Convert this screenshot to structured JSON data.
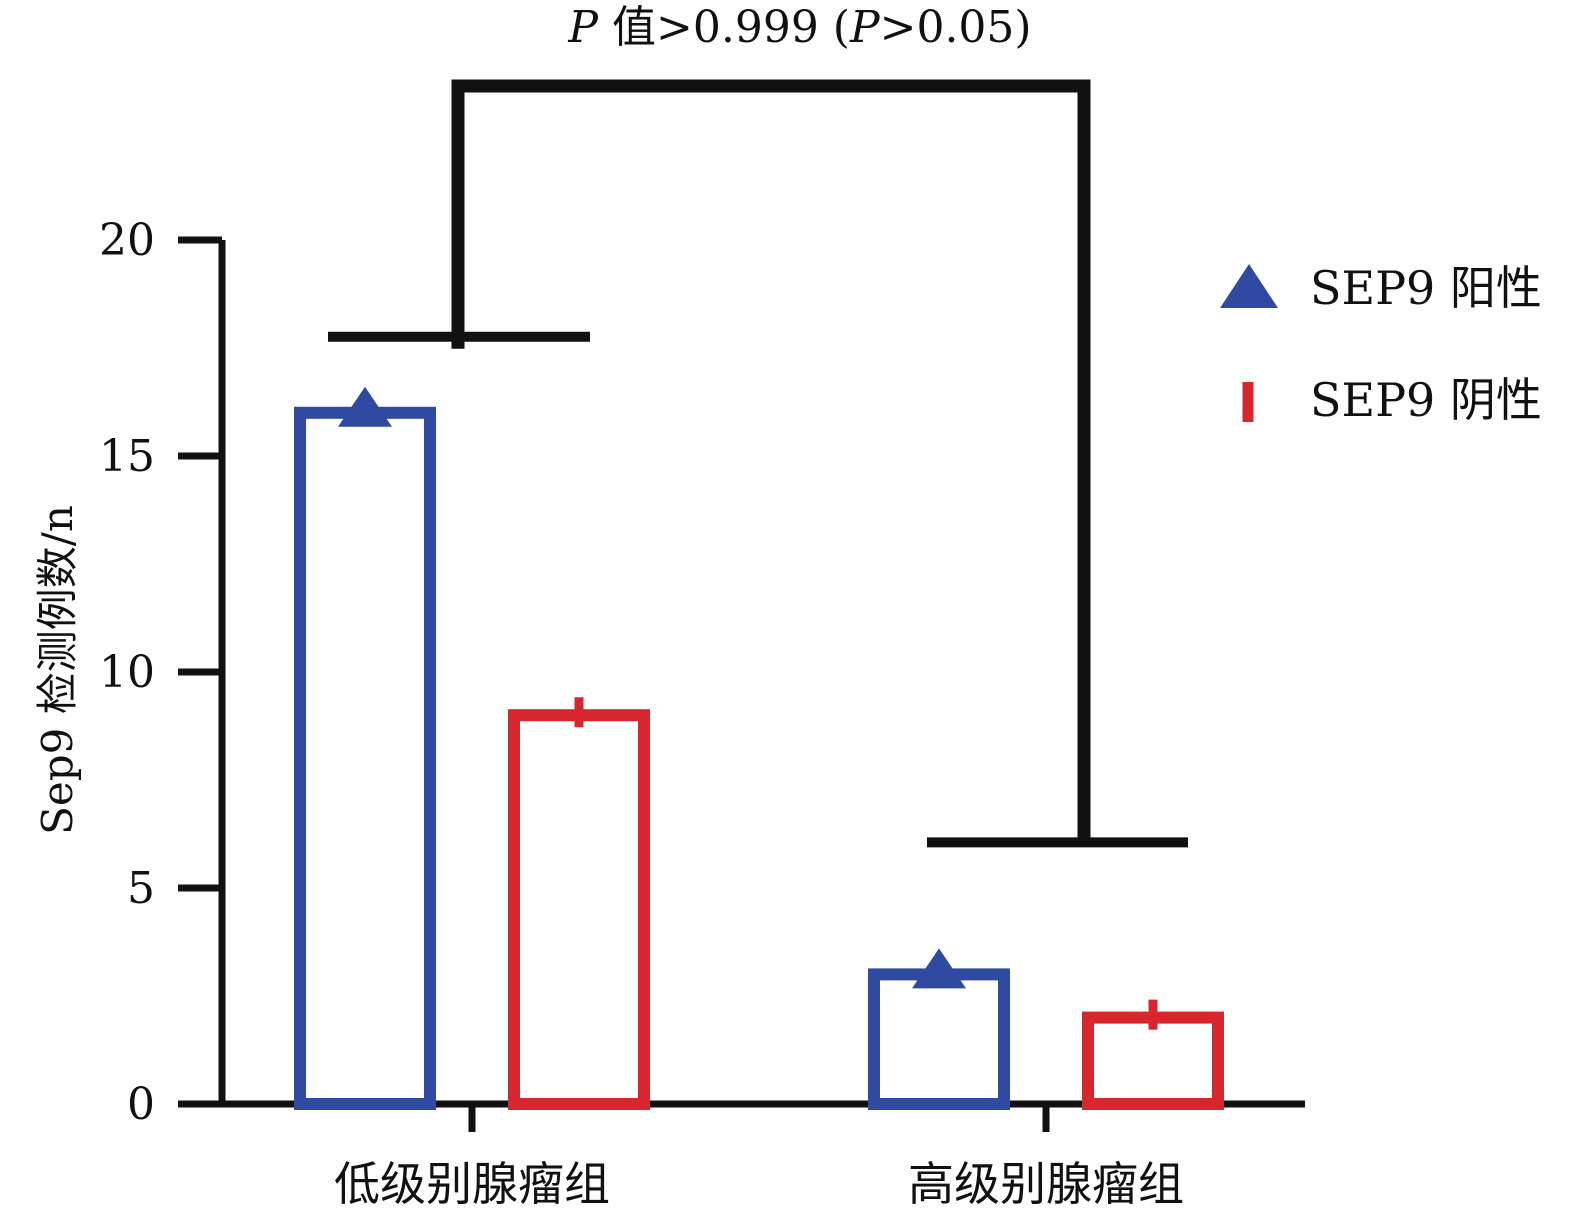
{
  "chart_data": {
    "type": "bar",
    "title": "P 值>0.999 (P>0.05)",
    "title_parts": {
      "p1": "P",
      "mid": " 值>0.999 (",
      "p2": "P",
      "end": ">0.05)"
    },
    "ylabel": "Sep9 检测例数/n",
    "xlabel": "",
    "ylim": [
      0,
      20
    ],
    "yticks": [
      "0",
      "5",
      "10",
      "15",
      "20"
    ],
    "categories": [
      "低级别腺瘤组",
      "高级别腺瘤组"
    ],
    "series": [
      {
        "name": "SEP9 阳性",
        "values": [
          16,
          3
        ],
        "color": "#2f4aa0",
        "marker": "triangle"
      },
      {
        "name": "SEP9 阴性",
        "values": [
          9,
          2
        ],
        "color": "#d7262e",
        "marker": "bar-tick"
      }
    ],
    "significance_bracket": {
      "groups": [
        "低级别腺瘤组",
        "高级别腺瘤组"
      ],
      "label": "P 值>0.999 (P>0.05)"
    },
    "legend_position": "right",
    "grid": false
  }
}
